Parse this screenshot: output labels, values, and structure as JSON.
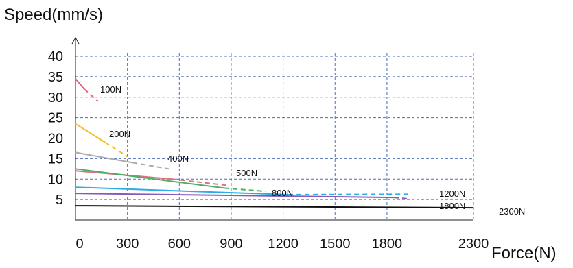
{
  "chart_data": {
    "type": "line",
    "xlabel": "Force(N)",
    "ylabel": "Speed(mm/s)",
    "xlim": [
      0,
      2300
    ],
    "ylim": [
      0,
      40
    ],
    "x_ticks": [
      "0",
      "300",
      "600",
      "900",
      "1200",
      "1500",
      "1800",
      "2300"
    ],
    "y_ticks": [
      "5",
      "10",
      "15",
      "20",
      "25",
      "30",
      "35",
      "40"
    ],
    "grid": "dashed",
    "series": [
      {
        "name": "100N",
        "color": "#e8607a",
        "solid": [
          [
            0,
            34.5
          ],
          [
            50,
            32
          ]
        ],
        "dashed": [
          [
            50,
            32
          ],
          [
            130,
            29
          ]
        ]
      },
      {
        "name": "200N",
        "color": "#f0c020",
        "solid": [
          [
            0,
            23.5
          ],
          [
            170,
            19
          ]
        ],
        "dashed": [
          [
            170,
            19
          ],
          [
            300,
            15.5
          ]
        ]
      },
      {
        "name": "400N",
        "color": "#aaaaaa",
        "solid": [
          [
            0,
            16.5
          ],
          [
            330,
            14
          ]
        ],
        "dashed": [
          [
            330,
            14
          ],
          [
            540,
            12.5
          ]
        ]
      },
      {
        "name": "500N",
        "color": "#e07080",
        "solid": [
          [
            0,
            12
          ],
          [
            560,
            10
          ]
        ],
        "dashed": [
          [
            560,
            10
          ],
          [
            870,
            8.5
          ]
        ]
      },
      {
        "name": "800N",
        "color": "#4caf63",
        "solid": [
          [
            0,
            12.5
          ],
          [
            860,
            7.8
          ]
        ],
        "dashed": [
          [
            860,
            7.8
          ],
          [
            1100,
            7
          ]
        ]
      },
      {
        "name": "1200N",
        "color": "#29aee8",
        "solid": [
          [
            0,
            8
          ],
          [
            1230,
            6.2
          ]
        ],
        "dashed": [
          [
            1230,
            6.2
          ],
          [
            1920,
            6.3
          ]
        ]
      },
      {
        "name": "1800N",
        "color": "#8a58b8",
        "solid": [
          [
            0,
            6.5
          ],
          [
            1840,
            5.5
          ]
        ],
        "dashed": [
          [
            1840,
            5.5
          ],
          [
            1920,
            5.2
          ]
        ]
      },
      {
        "name": "2300N",
        "color": "#111111",
        "solid": [
          [
            0,
            3.5
          ],
          [
            2300,
            3
          ]
        ],
        "dashed": []
      }
    ]
  }
}
